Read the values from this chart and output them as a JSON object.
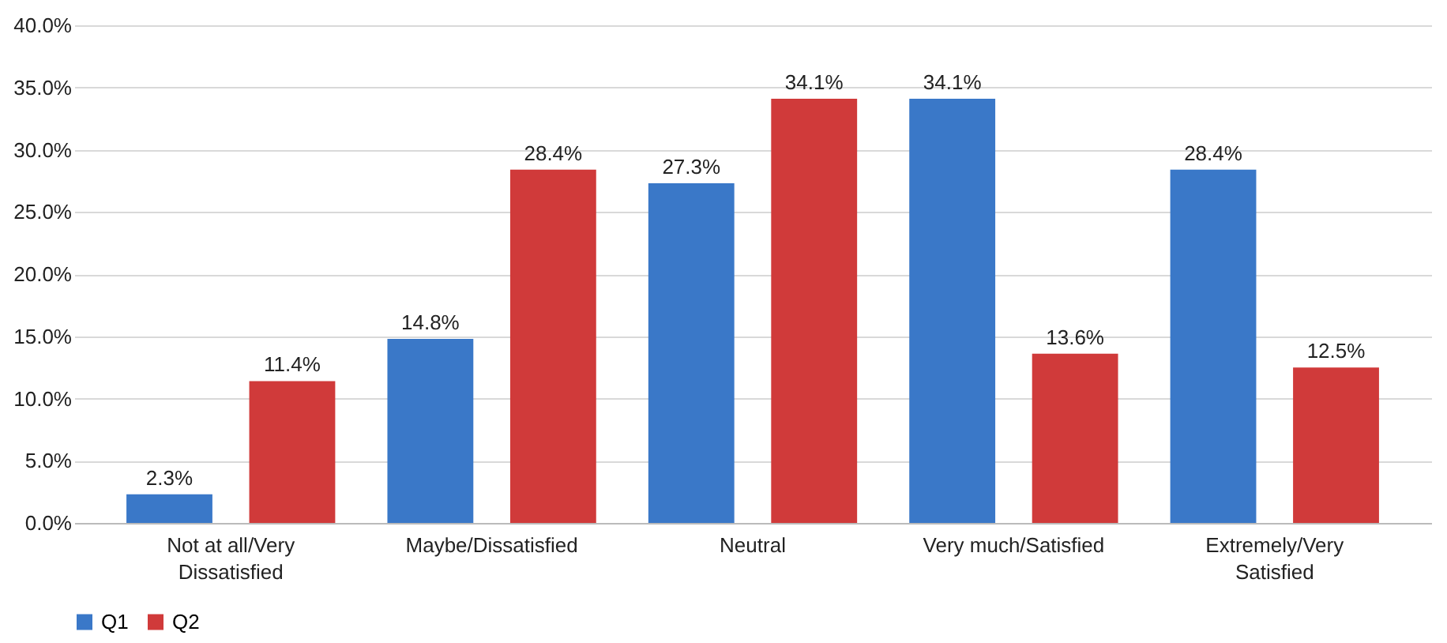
{
  "chart_data": {
    "type": "bar",
    "categories": [
      "Not at all/Very Dissatisfied",
      "Maybe/Dissatisfied",
      "Neutral",
      "Very much/Satisfied",
      "Extremely/Very Satisfied"
    ],
    "series": [
      {
        "name": "Q1",
        "color": "#3a78c8",
        "values": [
          2.3,
          14.8,
          27.3,
          34.1,
          28.4
        ],
        "value_labels": [
          "2.3%",
          "14.8%",
          "27.3%",
          "34.1%",
          "28.4%"
        ]
      },
      {
        "name": "Q2",
        "color": "#d03a3a",
        "values": [
          11.4,
          28.4,
          34.1,
          13.6,
          12.5
        ],
        "value_labels": [
          "11.4%",
          "28.4%",
          "34.1%",
          "13.6%",
          "12.5%"
        ]
      }
    ],
    "ylim": [
      0,
      40
    ],
    "yticks": [
      {
        "value": 0,
        "label": "0.0%"
      },
      {
        "value": 5,
        "label": "5.0%"
      },
      {
        "value": 10,
        "label": "10.0%"
      },
      {
        "value": 15,
        "label": "15.0%"
      },
      {
        "value": 20,
        "label": "20.0%"
      },
      {
        "value": 25,
        "label": "25.0%"
      },
      {
        "value": 30,
        "label": "30.0%"
      },
      {
        "value": 35,
        "label": "35.0%"
      },
      {
        "value": 40,
        "label": "40.0%"
      }
    ],
    "grid": true,
    "legend": "bottom"
  }
}
